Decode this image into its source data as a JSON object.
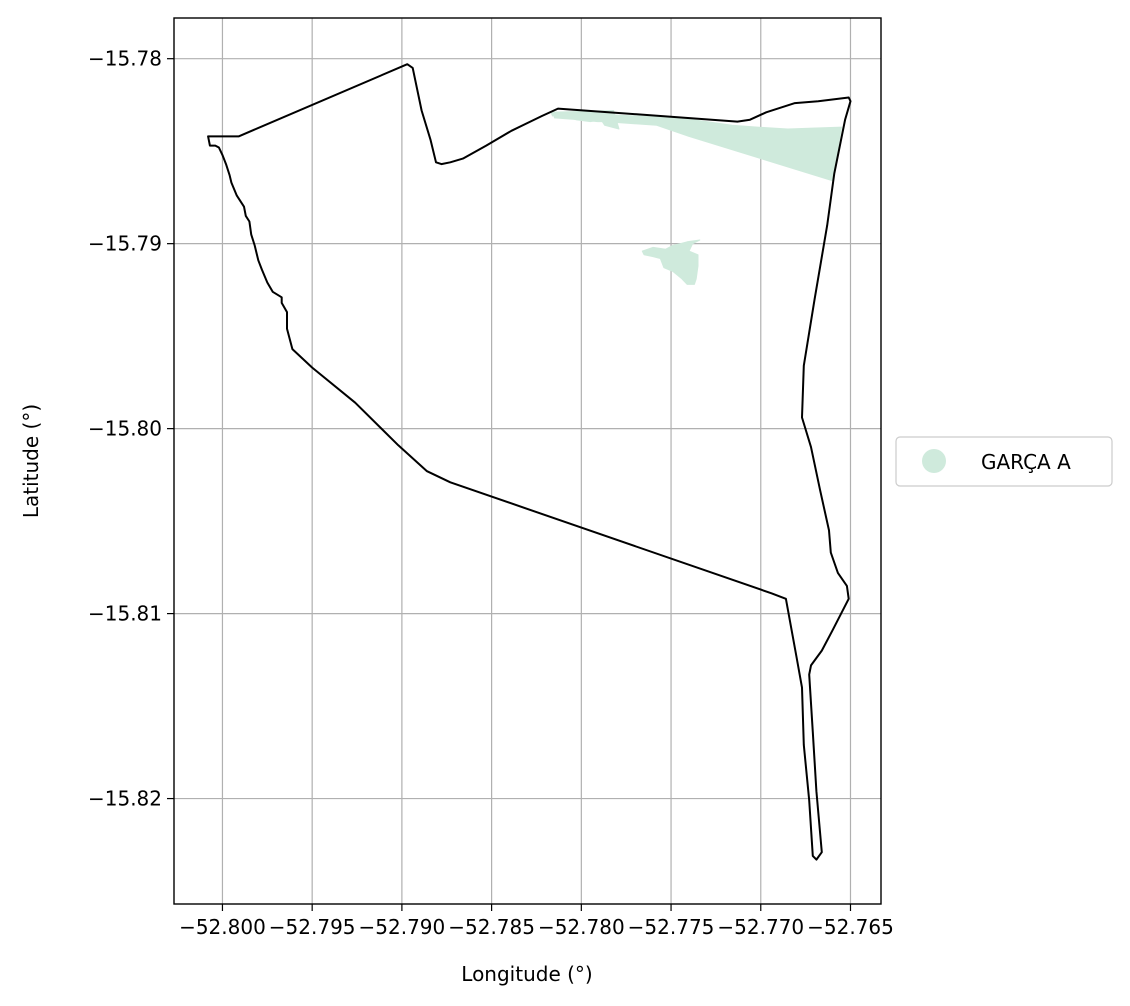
{
  "chart_data": {
    "type": "map",
    "title": "",
    "xlabel": "Longitude (°)",
    "ylabel": "Latitude (°)",
    "xlim": [
      -52.8027,
      -52.7633
    ],
    "ylim": [
      -15.8257,
      -15.7778
    ],
    "x_ticks": [
      {
        "value": -52.8,
        "label": "−52.800"
      },
      {
        "value": -52.795,
        "label": "−52.795"
      },
      {
        "value": -52.79,
        "label": "−52.790"
      },
      {
        "value": -52.785,
        "label": "−52.785"
      },
      {
        "value": -52.78,
        "label": "−52.780"
      },
      {
        "value": -52.775,
        "label": "−52.775"
      },
      {
        "value": -52.77,
        "label": "−52.770"
      },
      {
        "value": -52.765,
        "label": "−52.765"
      }
    ],
    "y_ticks": [
      {
        "value": -15.78,
        "label": "−15.78"
      },
      {
        "value": -15.79,
        "label": "−15.79"
      },
      {
        "value": -15.8,
        "label": "−15.80"
      },
      {
        "value": -15.81,
        "label": "−15.81"
      },
      {
        "value": -15.82,
        "label": "−15.82"
      }
    ],
    "grid": true,
    "legend": {
      "placement": "right-center",
      "entries": [
        {
          "label": "GARÇA A",
          "color": "#cfeadc"
        }
      ]
    },
    "fill_color": "#cfeadc",
    "boundary_color": "#000000",
    "boundary": [
      [
        -52.7991,
        -15.7842
      ],
      [
        -52.7897,
        -15.7803
      ],
      [
        -52.7894,
        -15.7805
      ],
      [
        -52.7889,
        -15.7828
      ],
      [
        -52.7884,
        -15.7844
      ],
      [
        -52.7881,
        -15.7856
      ],
      [
        -52.7878,
        -15.7857
      ],
      [
        -52.7873,
        -15.7856
      ],
      [
        -52.7866,
        -15.7854
      ],
      [
        -52.7853,
        -15.7847
      ],
      [
        -52.7839,
        -15.7839
      ],
      [
        -52.7822,
        -15.7831
      ],
      [
        -52.7813,
        -15.7827
      ],
      [
        -52.7713,
        -15.7834
      ],
      [
        -52.7706,
        -15.7833
      ],
      [
        -52.7697,
        -15.7829
      ],
      [
        -52.7681,
        -15.7824
      ],
      [
        -52.7668,
        -15.7823
      ],
      [
        -52.7651,
        -15.7821
      ],
      [
        -52.765,
        -15.7823
      ],
      [
        -52.7653,
        -15.7833
      ],
      [
        -52.7659,
        -15.7862
      ],
      [
        -52.7663,
        -15.789
      ],
      [
        -52.767,
        -15.793
      ],
      [
        -52.7676,
        -15.7966
      ],
      [
        -52.7677,
        -15.7994
      ],
      [
        -52.7672,
        -15.801
      ],
      [
        -52.7667,
        -15.8033
      ],
      [
        -52.7662,
        -15.8055
      ],
      [
        -52.7661,
        -15.8067
      ],
      [
        -52.7657,
        -15.8078
      ],
      [
        -52.7652,
        -15.8085
      ],
      [
        -52.7651,
        -15.8092
      ],
      [
        -52.766,
        -15.8109
      ],
      [
        -52.7666,
        -15.812
      ],
      [
        -52.7672,
        -15.8128
      ],
      [
        -52.7673,
        -15.8133
      ],
      [
        -52.7671,
        -15.8164
      ],
      [
        -52.7669,
        -15.8196
      ],
      [
        -52.7666,
        -15.8229
      ],
      [
        -52.7669,
        -15.8233
      ],
      [
        -52.7671,
        -15.8231
      ],
      [
        -52.7673,
        -15.8201
      ],
      [
        -52.7676,
        -15.8171
      ],
      [
        -52.7677,
        -15.814
      ],
      [
        -52.768,
        -15.8124
      ],
      [
        -52.7686,
        -15.8092
      ],
      [
        -52.7694,
        -15.8089
      ],
      [
        -52.7873,
        -15.8029
      ],
      [
        -52.7886,
        -15.8023
      ],
      [
        -52.7902,
        -15.8009
      ],
      [
        -52.7926,
        -15.7986
      ],
      [
        -52.795,
        -15.7967
      ],
      [
        -52.7961,
        -15.7957
      ],
      [
        -52.7964,
        -15.7946
      ],
      [
        -52.7964,
        -15.7937
      ],
      [
        -52.7967,
        -15.7932
      ],
      [
        -52.7967,
        -15.7929
      ],
      [
        -52.7972,
        -15.7926
      ],
      [
        -52.7975,
        -15.7921
      ],
      [
        -52.7978,
        -15.7914
      ],
      [
        -52.798,
        -15.7909
      ],
      [
        -52.7982,
        -15.7901
      ],
      [
        -52.7984,
        -15.7895
      ],
      [
        -52.7985,
        -15.7888
      ],
      [
        -52.7987,
        -15.7885
      ],
      [
        -52.7988,
        -15.788
      ],
      [
        -52.7992,
        -15.7874
      ],
      [
        -52.7995,
        -15.7867
      ],
      [
        -52.7996,
        -15.7863
      ],
      [
        -52.7998,
        -15.7857
      ],
      [
        -52.8,
        -15.7852
      ],
      [
        -52.8002,
        -15.7848
      ],
      [
        -52.8004,
        -15.7847
      ],
      [
        -52.8007,
        -15.7847
      ],
      [
        -52.8008,
        -15.7842
      ],
      [
        -52.7991,
        -15.7842
      ]
    ],
    "fills": [
      {
        "name": "GARÇA A",
        "points": [
          [
            -52.7815,
            -15.7829
          ],
          [
            -52.7745,
            -15.7832
          ],
          [
            -52.7716,
            -15.7836
          ],
          [
            -52.7702,
            -15.7837
          ],
          [
            -52.7685,
            -15.7838
          ],
          [
            -52.7655,
            -15.7837
          ],
          [
            -52.766,
            -15.7866
          ],
          [
            -52.774,
            -15.7842
          ],
          [
            -52.7758,
            -15.7836
          ],
          [
            -52.7787,
            -15.7834
          ],
          [
            -52.7791,
            -15.7834
          ],
          [
            -52.7801,
            -15.7833
          ],
          [
            -52.7815,
            -15.7832
          ]
        ]
      },
      {
        "name": "GARÇA A",
        "points": [
          [
            -52.7817,
            -15.7829
          ],
          [
            -52.7816,
            -15.7831
          ],
          [
            -52.7812,
            -15.7831
          ],
          [
            -52.7809,
            -15.7831
          ],
          [
            -52.7803,
            -15.7833
          ],
          [
            -52.7795,
            -15.7834
          ],
          [
            -52.7789,
            -15.7833
          ],
          [
            -52.7787,
            -15.7836
          ],
          [
            -52.7779,
            -15.7838
          ],
          [
            -52.7782,
            -15.7828
          ]
        ]
      },
      {
        "name": "GARÇA A",
        "points": [
          [
            -52.7734,
            -15.7898
          ],
          [
            -52.7738,
            -15.79
          ],
          [
            -52.774,
            -15.7904
          ],
          [
            -52.7735,
            -15.7906
          ],
          [
            -52.7735,
            -15.7912
          ],
          [
            -52.7736,
            -15.7919
          ],
          [
            -52.7737,
            -15.7922
          ],
          [
            -52.7741,
            -15.7922
          ],
          [
            -52.7744,
            -15.7919
          ],
          [
            -52.7749,
            -15.7915
          ],
          [
            -52.7754,
            -15.7913
          ],
          [
            -52.7756,
            -15.7908
          ],
          [
            -52.776,
            -15.7907
          ],
          [
            -52.7765,
            -15.7906
          ],
          [
            -52.7766,
            -15.7904
          ],
          [
            -52.776,
            -15.7902
          ],
          [
            -52.7753,
            -15.7903
          ],
          [
            -52.7749,
            -15.7901
          ],
          [
            -52.7745,
            -15.79
          ],
          [
            -52.7741,
            -15.7899
          ]
        ]
      }
    ]
  }
}
